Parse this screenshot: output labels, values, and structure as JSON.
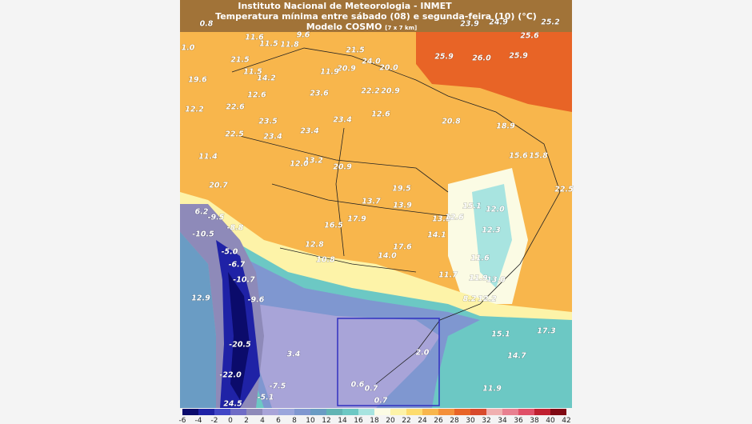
{
  "header": {
    "line1": "Instituto Nacional de Meteorologia - INMET",
    "line2": "Temperatura mínima entre sábado (08) e segunda-feira (10) (°C)",
    "line3": "Modelo COSMO",
    "resolution": "[7 x 7 km]"
  },
  "map": {
    "labels": [
      "23.9",
      "24.9",
      "25.2",
      "25.6",
      "0.8",
      "1.0",
      "11.6",
      "11.5",
      "11.8",
      "9.6",
      "21.5",
      "24.0",
      "20.9",
      "20.0",
      "25.9",
      "26.0",
      "25.9",
      "21.5",
      "11.5",
      "14.2",
      "11.9",
      "19.6",
      "12.6",
      "23.6",
      "22.2",
      "20.9",
      "12.2",
      "22.6",
      "23.5",
      "23.4",
      "12.6",
      "20.8",
      "18.9",
      "23.4",
      "22.5",
      "23.4",
      "11.4",
      "13.2",
      "12.0",
      "20.9",
      "15.6",
      "15.8",
      "20.7",
      "19.5",
      "22.5",
      "13.7",
      "13.9",
      "15.1",
      "12.0",
      "6.2",
      "-9.5",
      "17.9",
      "13.9",
      "12.6",
      "-8.8",
      "16.5",
      "12.3",
      "-10.5",
      "14.1",
      "12.8",
      "17.6",
      "-5.0",
      "14.0",
      "10.8",
      "11.6",
      "-6.7",
      "-10.7",
      "11.7",
      "11.9",
      "13.0",
      "12.9",
      "-9.6",
      "8.2",
      "12.2",
      "15.1",
      "17.3",
      "-20.5",
      "3.4",
      "2.0",
      "14.7",
      "-22.0",
      "-7.5",
      "0.6",
      "0.7",
      "11.9",
      "-5.1",
      "24.5",
      "0.7"
    ]
  },
  "colorbar": {
    "ticks": [
      -6,
      -4,
      -2,
      0,
      2,
      4,
      6,
      8,
      10,
      12,
      14,
      16,
      18,
      20,
      22,
      24,
      26,
      28,
      30,
      32,
      34,
      36,
      38,
      40,
      42
    ],
    "colors": [
      "#0b0b6b",
      "#1f22a6",
      "#4146c6",
      "#6f6cc6",
      "#8e8ab9",
      "#a8a4d8",
      "#9aa6dc",
      "#7f97d0",
      "#6a9cc4",
      "#62b4b4",
      "#6cc8c4",
      "#a8e4e0",
      "#fbfbe4",
      "#fdf3a8",
      "#fddc6e",
      "#f8b64c",
      "#f4903a",
      "#e86426",
      "#d84a2c",
      "#f0b0b0",
      "#e88090",
      "#e05068",
      "#c02030",
      "#800a14"
    ]
  }
}
